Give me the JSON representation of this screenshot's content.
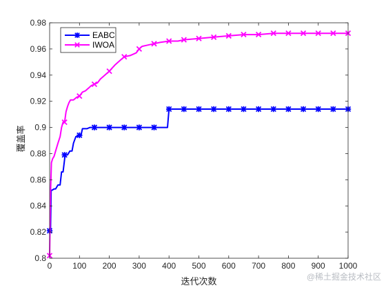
{
  "chart_data": {
    "type": "line",
    "title": "",
    "xlabel": "迭代次数",
    "ylabel": "覆盖率",
    "xlim": [
      0,
      1000
    ],
    "ylim": [
      0.8,
      0.98
    ],
    "xticks": [
      "0",
      "100",
      "200",
      "300",
      "400",
      "500",
      "600",
      "700",
      "800",
      "900",
      "1000"
    ],
    "yticks": [
      "0.8",
      "0.82",
      "0.84",
      "0.86",
      "0.88",
      "0.9",
      "0.92",
      "0.94",
      "0.96",
      "0.98"
    ],
    "grid": false,
    "legend_position": "top-left",
    "series": [
      {
        "name": "EABC",
        "color": "#0000ff",
        "marker": "asterisk",
        "x": [
          0,
          3,
          5,
          8,
          15,
          20,
          28,
          35,
          40,
          45,
          52,
          60,
          68,
          75,
          80,
          88,
          95,
          100,
          105,
          110,
          115,
          125,
          135,
          145,
          150,
          200,
          250,
          300,
          350,
          395,
          400,
          450,
          500,
          550,
          600,
          650,
          700,
          750,
          800,
          850,
          900,
          950,
          1000
        ],
        "y": [
          0.821,
          0.821,
          0.852,
          0.852,
          0.853,
          0.853,
          0.856,
          0.856,
          0.866,
          0.866,
          0.879,
          0.879,
          0.882,
          0.882,
          0.888,
          0.893,
          0.893,
          0.894,
          0.894,
          0.899,
          0.899,
          0.899,
          0.9,
          0.9,
          0.9,
          0.9,
          0.9,
          0.9,
          0.9,
          0.9,
          0.914,
          0.914,
          0.914,
          0.914,
          0.914,
          0.914,
          0.914,
          0.914,
          0.914,
          0.914,
          0.914,
          0.914,
          0.914
        ],
        "marker_x": [
          0,
          50,
          100,
          150,
          200,
          250,
          300,
          350,
          400,
          450,
          500,
          550,
          600,
          650,
          700,
          750,
          800,
          850,
          900,
          950,
          1000
        ],
        "marker_y": [
          0.821,
          0.879,
          0.894,
          0.9,
          0.9,
          0.9,
          0.9,
          0.9,
          0.914,
          0.914,
          0.914,
          0.914,
          0.914,
          0.914,
          0.914,
          0.914,
          0.914,
          0.914,
          0.914,
          0.914,
          0.914
        ]
      },
      {
        "name": "IWOA",
        "color": "#ff00ff",
        "marker": "x",
        "x": [
          0,
          3,
          6,
          10,
          15,
          20,
          28,
          35,
          40,
          45,
          50,
          55,
          60,
          65,
          70,
          80,
          90,
          100,
          110,
          120,
          130,
          140,
          150,
          160,
          170,
          180,
          190,
          200,
          220,
          240,
          250,
          270,
          290,
          300,
          310,
          330,
          350,
          370,
          400,
          430,
          450,
          500,
          550,
          600,
          650,
          700,
          750,
          800,
          850,
          900,
          950,
          1000
        ],
        "y": [
          0.802,
          0.85,
          0.873,
          0.876,
          0.878,
          0.882,
          0.888,
          0.893,
          0.9,
          0.904,
          0.904,
          0.912,
          0.916,
          0.919,
          0.921,
          0.921,
          0.923,
          0.924,
          0.927,
          0.928,
          0.93,
          0.932,
          0.933,
          0.934,
          0.937,
          0.939,
          0.941,
          0.943,
          0.948,
          0.952,
          0.954,
          0.955,
          0.957,
          0.96,
          0.962,
          0.963,
          0.964,
          0.965,
          0.966,
          0.966,
          0.967,
          0.968,
          0.969,
          0.97,
          0.971,
          0.971,
          0.972,
          0.972,
          0.972,
          0.972,
          0.972,
          0.972
        ],
        "marker_x": [
          0,
          50,
          100,
          150,
          200,
          250,
          300,
          350,
          400,
          450,
          500,
          550,
          600,
          650,
          700,
          750,
          800,
          850,
          900,
          950,
          1000
        ],
        "marker_y": [
          0.802,
          0.904,
          0.924,
          0.933,
          0.943,
          0.954,
          0.96,
          0.964,
          0.966,
          0.967,
          0.968,
          0.969,
          0.97,
          0.971,
          0.971,
          0.972,
          0.972,
          0.972,
          0.972,
          0.972,
          0.972
        ]
      }
    ]
  },
  "watermark": "@稀土掘金技术社区"
}
